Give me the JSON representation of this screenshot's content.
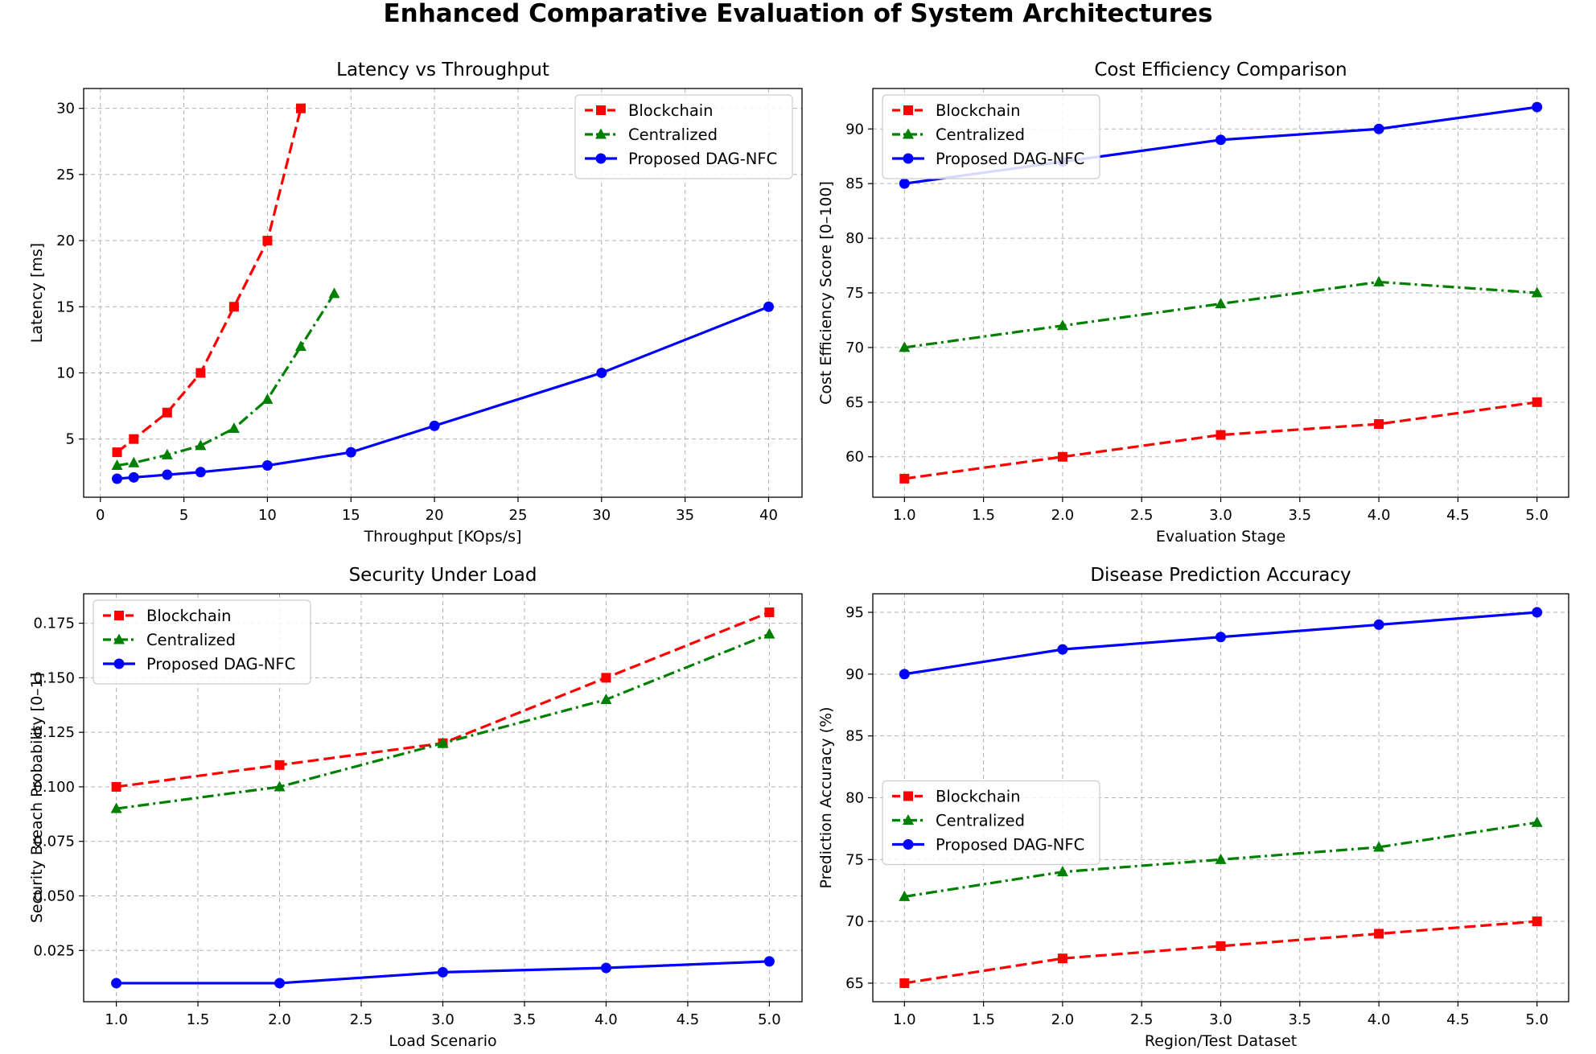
{
  "figure": {
    "title": "Enhanced Comparative Evaluation of System Architectures"
  },
  "colors": {
    "Blockchain": "#ff0000",
    "Centralized": "#008000",
    "Proposed DAG-NFC": "#0000ff"
  },
  "chart_data": [
    {
      "type": "line",
      "title": "Latency vs Throughput",
      "xlabel": "Throughput [KOps/s]",
      "ylabel": "Latency [ms]",
      "xlim": [
        -1,
        42
      ],
      "ylim": [
        0.6,
        31.5
      ],
      "xticks": [
        0,
        5,
        10,
        15,
        20,
        25,
        30,
        35,
        40
      ],
      "xtick_labels": [
        "0",
        "5",
        "10",
        "15",
        "20",
        "25",
        "30",
        "35",
        "40"
      ],
      "yticks": [
        5,
        10,
        15,
        20,
        25,
        30
      ],
      "ytick_labels": [
        "5",
        "10",
        "15",
        "20",
        "25",
        "30"
      ],
      "grid": true,
      "legend": "upper right",
      "series": [
        {
          "name": "Blockchain",
          "x": [
            1,
            2,
            4,
            6,
            8,
            10,
            12
          ],
          "y": [
            4,
            5,
            7,
            10,
            15,
            20,
            30
          ],
          "marker": "square",
          "linestyle": "dashed"
        },
        {
          "name": "Centralized",
          "x": [
            1,
            2,
            4,
            6,
            8,
            10,
            12,
            14
          ],
          "y": [
            3,
            3.2,
            3.8,
            4.5,
            5.8,
            8,
            12,
            16
          ],
          "marker": "triangle",
          "linestyle": "dashdot"
        },
        {
          "name": "Proposed DAG-NFC",
          "x": [
            1,
            2,
            4,
            6,
            10,
            15,
            20,
            30,
            40
          ],
          "y": [
            2,
            2.1,
            2.3,
            2.5,
            3,
            4,
            6,
            10,
            15
          ],
          "marker": "circle",
          "linestyle": "solid"
        }
      ]
    },
    {
      "type": "line",
      "title": "Cost Efficiency Comparison",
      "xlabel": "Evaluation Stage",
      "ylabel": "Cost Efficiency Score [0–100]",
      "xlim": [
        0.8,
        5.2
      ],
      "ylim": [
        56.3,
        93.7
      ],
      "xticks": [
        1,
        1.5,
        2,
        2.5,
        3,
        3.5,
        4,
        4.5,
        5
      ],
      "xtick_labels": [
        "1.0",
        "1.5",
        "2.0",
        "2.5",
        "3.0",
        "3.5",
        "4.0",
        "4.5",
        "5.0"
      ],
      "yticks": [
        60,
        65,
        70,
        75,
        80,
        85,
        90
      ],
      "ytick_labels": [
        "60",
        "65",
        "70",
        "75",
        "80",
        "85",
        "90"
      ],
      "grid": true,
      "legend": "upper left",
      "series": [
        {
          "name": "Blockchain",
          "x": [
            1,
            2,
            3,
            4,
            5
          ],
          "y": [
            58,
            60,
            62,
            63,
            65
          ],
          "marker": "square",
          "linestyle": "dashed"
        },
        {
          "name": "Centralized",
          "x": [
            1,
            2,
            3,
            4,
            5
          ],
          "y": [
            70,
            72,
            74,
            76,
            75
          ],
          "marker": "triangle",
          "linestyle": "dashdot"
        },
        {
          "name": "Proposed DAG-NFC",
          "x": [
            1,
            2,
            3,
            4,
            5
          ],
          "y": [
            85,
            87,
            89,
            90,
            92
          ],
          "marker": "circle",
          "linestyle": "solid"
        }
      ]
    },
    {
      "type": "line",
      "title": "Security Under Load",
      "xlabel": "Load Scenario",
      "ylabel": "Security Breach Probability [0–1]",
      "xlim": [
        0.8,
        5.2
      ],
      "ylim": [
        0.0015,
        0.1885
      ],
      "xticks": [
        1,
        1.5,
        2,
        2.5,
        3,
        3.5,
        4,
        4.5,
        5
      ],
      "xtick_labels": [
        "1.0",
        "1.5",
        "2.0",
        "2.5",
        "3.0",
        "3.5",
        "4.0",
        "4.5",
        "5.0"
      ],
      "yticks": [
        0.025,
        0.05,
        0.075,
        0.1,
        0.125,
        0.15,
        0.175
      ],
      "ytick_labels": [
        "0.025",
        "0.050",
        "0.075",
        "0.100",
        "0.125",
        "0.150",
        "0.175"
      ],
      "grid": true,
      "legend": "upper left",
      "series": [
        {
          "name": "Blockchain",
          "x": [
            1,
            2,
            3,
            4,
            5
          ],
          "y": [
            0.1,
            0.11,
            0.12,
            0.15,
            0.18
          ],
          "marker": "square",
          "linestyle": "dashed"
        },
        {
          "name": "Centralized",
          "x": [
            1,
            2,
            3,
            4,
            5
          ],
          "y": [
            0.09,
            0.1,
            0.12,
            0.14,
            0.17
          ],
          "marker": "triangle",
          "linestyle": "dashdot"
        },
        {
          "name": "Proposed DAG-NFC",
          "x": [
            1,
            2,
            3,
            4,
            5
          ],
          "y": [
            0.01,
            0.01,
            0.015,
            0.017,
            0.02
          ],
          "marker": "circle",
          "linestyle": "solid"
        }
      ]
    },
    {
      "type": "line",
      "title": "Disease Prediction Accuracy",
      "xlabel": "Region/Test Dataset",
      "ylabel": "Prediction Accuracy (%)",
      "xlim": [
        0.8,
        5.2
      ],
      "ylim": [
        63.5,
        96.5
      ],
      "xticks": [
        1,
        1.5,
        2,
        2.5,
        3,
        3.5,
        4,
        4.5,
        5
      ],
      "xtick_labels": [
        "1.0",
        "1.5",
        "2.0",
        "2.5",
        "3.0",
        "3.5",
        "4.0",
        "4.5",
        "5.0"
      ],
      "yticks": [
        65,
        70,
        75,
        80,
        85,
        90,
        95
      ],
      "ytick_labels": [
        "65",
        "70",
        "75",
        "80",
        "85",
        "90",
        "95"
      ],
      "grid": true,
      "legend": "center left",
      "series": [
        {
          "name": "Blockchain",
          "x": [
            1,
            2,
            3,
            4,
            5
          ],
          "y": [
            65,
            67,
            68,
            69,
            70
          ],
          "marker": "square",
          "linestyle": "dashed"
        },
        {
          "name": "Centralized",
          "x": [
            1,
            2,
            3,
            4,
            5
          ],
          "y": [
            72,
            74,
            75,
            76,
            78
          ],
          "marker": "triangle",
          "linestyle": "dashdot"
        },
        {
          "name": "Proposed DAG-NFC",
          "x": [
            1,
            2,
            3,
            4,
            5
          ],
          "y": [
            90,
            92,
            93,
            94,
            95
          ],
          "marker": "circle",
          "linestyle": "solid"
        }
      ]
    }
  ]
}
